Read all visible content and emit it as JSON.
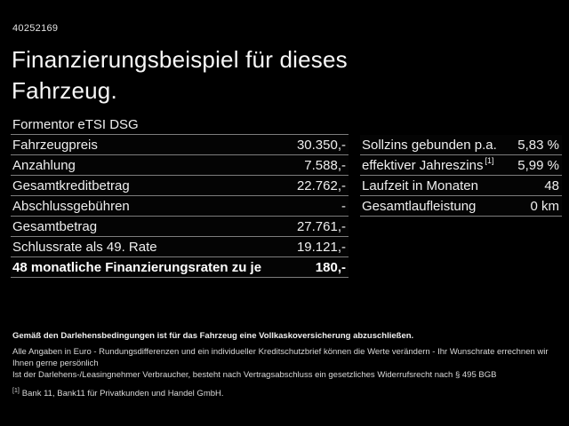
{
  "header": {
    "offer_id": "40252169",
    "title_line1": "Finanzierungsbeispiel für dieses",
    "title_line2": "Fahrzeug."
  },
  "model_name": "Formentor eTSI DSG",
  "finance_table": {
    "rows": [
      {
        "label": "Fahrzeugpreis",
        "value": "30.350,-"
      },
      {
        "label": "Anzahlung",
        "value": "7.588,-"
      },
      {
        "label": "Gesamtkreditbetrag",
        "value": "22.762,-"
      },
      {
        "label": "Abschlussgebühren",
        "value": "-"
      },
      {
        "label": "Gesamtbetrag",
        "value": "27.761,-"
      },
      {
        "label": "Schlussrate als 49. Rate",
        "value": "19.121,-"
      },
      {
        "label": "48 monatliche Finanzierungsraten zu je",
        "value": "180,-",
        "bold": true
      }
    ]
  },
  "conditions_table": {
    "rows": [
      {
        "label": "Sollzins gebunden p.a.",
        "value": "5,83 %"
      },
      {
        "label": "effektiver Jahreszins",
        "sup": "[1]",
        "value": "5,99 %"
      },
      {
        "label": "Laufzeit in Monaten",
        "value": "48"
      },
      {
        "label": "Gesamtlaufleistung",
        "value": "0 km"
      }
    ]
  },
  "footer": {
    "bold_line": "Gemäß den Darlehensbedingungen ist für das Fahrzeug eine Vollkaskoversicherung abzuschließen.",
    "line2": "Alle Angaben in Euro - Rundungsdifferenzen und ein individueller Kreditschutzbrief können die Werte verändern - Ihr Wunschrate errechnen wir Ihnen gerne persönlich",
    "line3": "Ist der Darlehens-/Leasingnehmer Verbraucher, besteht nach Vertragsabschluss ein gesetzliches Widerrufsrecht nach § 495 BGB",
    "footnote_marker": "[1]",
    "footnote_text": "Bank 11, Bank11 für Privatkunden und Handel GmbH."
  },
  "colors": {
    "background": "#000000",
    "text": "#f0f0f0",
    "separator": "#7d7d7d"
  }
}
